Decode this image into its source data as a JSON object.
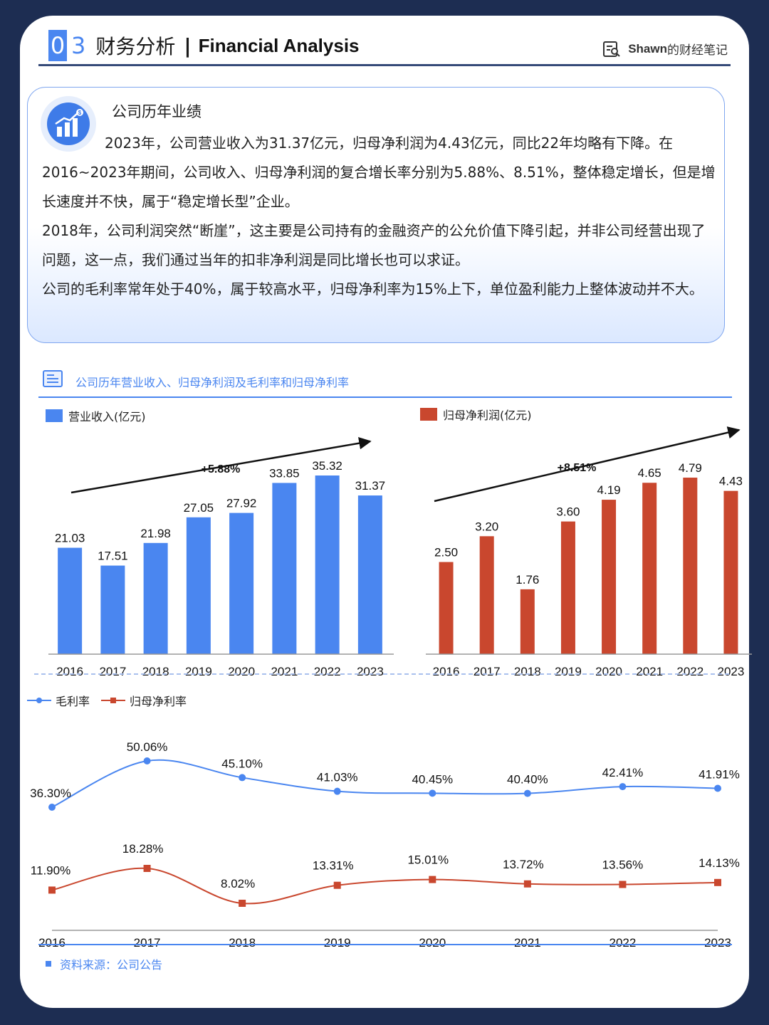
{
  "header": {
    "section_num_boxed": "0",
    "section_num": "3",
    "title_cn": "财务分析",
    "separator": "|",
    "title_en": "Financial Analysis",
    "brand_en": "Shawn",
    "brand_cn": "的财经笔记"
  },
  "intro": {
    "heading": "公司历年业绩",
    "paragraphs": [
      "2023年，公司营业收入为31.37亿元，归母净利润为4.43亿元，同比22年均略有下降。在2016~2023年期间，公司收入、归母净利润的复合增长率分别为5.88%、8.51%，整体稳定增长，但是增长速度并不快，属于“稳定增长型”企业。",
      "2018年，公司利润突然“断崖”，这主要是公司持有的金融资产的公允价值下降引起，并非公司经营出现了问题，这一点，我们通过当年的扣非净利润是同比增长也可以求证。",
      "公司的毛利率常年处于40%，属于较高水平，归母净利率为15%上下，单位盈利能力上整体波动并不大。"
    ]
  },
  "chart_section": {
    "title": "公司历年营业收入、归母净利润及毛利率和归母净利率"
  },
  "source": {
    "text": "资料来源：公司公告"
  },
  "colors": {
    "blue": "#4a86f0",
    "red": "#c9472e"
  },
  "chart_data": [
    {
      "type": "bar",
      "legend": "营业收入(亿元)",
      "categories": [
        "2016",
        "2017",
        "2018",
        "2019",
        "2020",
        "2021",
        "2022",
        "2023"
      ],
      "values": [
        21.03,
        17.51,
        21.98,
        27.05,
        27.92,
        33.85,
        35.32,
        31.37
      ],
      "value_labels": [
        "21.03",
        "17.51",
        "21.98",
        "27.05",
        "27.92",
        "33.85",
        "35.32",
        "31.37"
      ],
      "annotation": "+5.88%",
      "color": "#4a86f0"
    },
    {
      "type": "bar",
      "legend": "归母净利润(亿元)",
      "categories": [
        "2016",
        "2017",
        "2018",
        "2019",
        "2020",
        "2021",
        "2022",
        "2023"
      ],
      "values": [
        2.5,
        3.2,
        1.76,
        3.6,
        4.19,
        4.65,
        4.79,
        4.43
      ],
      "value_labels": [
        "2.50",
        "3.20",
        "1.76",
        "3.60",
        "4.19",
        "4.65",
        "4.79",
        "4.43"
      ],
      "annotation": "+8.51%",
      "color": "#c9472e"
    },
    {
      "type": "line",
      "categories": [
        "2016",
        "2017",
        "2018",
        "2019",
        "2020",
        "2021",
        "2022",
        "2023"
      ],
      "series": [
        {
          "name": "毛利率",
          "values": [
            36.3,
            50.06,
            45.1,
            41.03,
            40.45,
            40.4,
            42.41,
            41.91
          ],
          "labels": [
            "36.30%",
            "50.06%",
            "45.10%",
            "41.03%",
            "40.45%",
            "40.40%",
            "42.41%",
            "41.91%"
          ],
          "color": "#4a86f0",
          "marker": "circle"
        },
        {
          "name": "归母净利率",
          "values": [
            11.9,
            18.28,
            8.02,
            13.31,
            15.01,
            13.72,
            13.56,
            14.13
          ],
          "labels": [
            "11.90%",
            "18.28%",
            "8.02%",
            "13.31%",
            "15.01%",
            "13.72%",
            "13.56%",
            "14.13%"
          ],
          "color": "#c9472e",
          "marker": "square"
        }
      ]
    }
  ]
}
